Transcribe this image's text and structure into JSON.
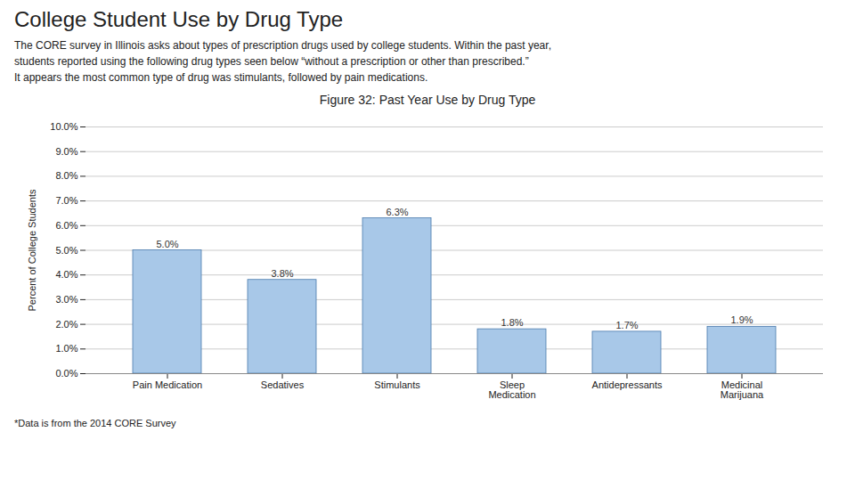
{
  "chart_data": {
    "type": "bar",
    "title": "Figure 32: Past Year Use by Drug Type",
    "annotations": [
      "College Student Use by Drug Type",
      "The CORE survey in Illinois asks about types of prescription drugs used by college students. Within the past year,\nstudents reported using the following drug types seen below “without a prescription or other than prescribed.”\nIt appears the most common type of drug was stimulants, followed by pain medications.",
      "*Data is from the 2014 CORE Survey"
    ],
    "categories": [
      "Pain Medication",
      "Sedatives",
      "Stimulants",
      "Sleep\nMedication",
      "Antidepressants",
      "Medicinal\nMarijuana"
    ],
    "values": [
      5.0,
      3.8,
      6.3,
      1.8,
      1.7,
      1.9
    ],
    "value_labels": [
      "5.0%",
      "3.8%",
      "6.3%",
      "1.8%",
      "1.7%",
      "1.9%"
    ],
    "data_labels": true,
    "ylabel": "Percent of College Students",
    "ylim": [
      0,
      10.0
    ],
    "yticks": [
      {
        "value": 0.0,
        "label": "0.0%"
      },
      {
        "value": 1.0,
        "label": "1.0%"
      },
      {
        "value": 2.0,
        "label": "2.0%"
      },
      {
        "value": 3.0,
        "label": "3.0%"
      },
      {
        "value": 4.0,
        "label": "4.0%"
      },
      {
        "value": 5.0,
        "label": "5.0%"
      },
      {
        "value": 6.0,
        "label": "6.0%"
      },
      {
        "value": 7.0,
        "label": "7.0%"
      },
      {
        "value": 8.0,
        "label": "8.0%"
      },
      {
        "value": 9.0,
        "label": "9.0%"
      },
      {
        "value": 10.0,
        "label": "10.0%"
      }
    ],
    "color": "#a8c8e8",
    "grid": true
  }
}
